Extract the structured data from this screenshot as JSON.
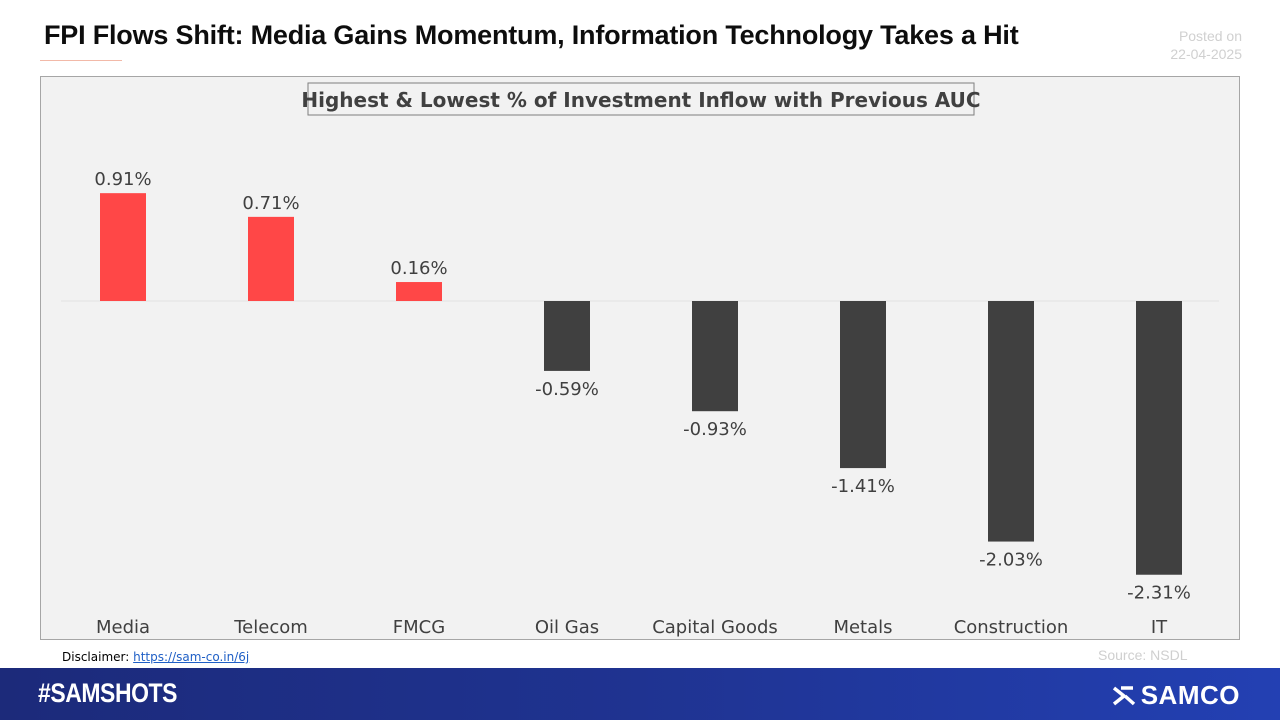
{
  "header": {
    "title": "FPI Flows Shift: Media Gains Momentum, Information Technology Takes a Hit",
    "posted_label": "Posted on",
    "posted_date": "22-04-2025"
  },
  "chart_data": {
    "type": "bar",
    "title": "Highest & Lowest % of Investment Inflow with Previous AUC",
    "categories": [
      "Media",
      "Telecom",
      "FMCG",
      "Oil Gas",
      "Capital Goods",
      "Metals",
      "Construction",
      "IT"
    ],
    "values": [
      0.91,
      0.71,
      0.16,
      -0.59,
      -0.93,
      -1.41,
      -2.03,
      -2.31
    ],
    "value_labels": [
      "0.91%",
      "0.71%",
      "0.16%",
      "-0.59%",
      "-0.93%",
      "-1.41%",
      "-2.03%",
      "-2.31%"
    ],
    "xlabel": "",
    "ylabel": "",
    "grid": false,
    "colors": {
      "positive": "#ff4747",
      "negative": "#404040"
    }
  },
  "disclaimer": {
    "label": "Disclaimer:",
    "link_text": "https://sam-co.in/6j"
  },
  "source": "Source: NSDL",
  "footer": {
    "hashtag": "#SAMSHOTS",
    "brand": "SAMCO",
    "brand_icon": "samco-logo-icon"
  },
  "colors": {
    "footer_bg": "#1f3391",
    "accent_rule": "#f2b9a8"
  }
}
